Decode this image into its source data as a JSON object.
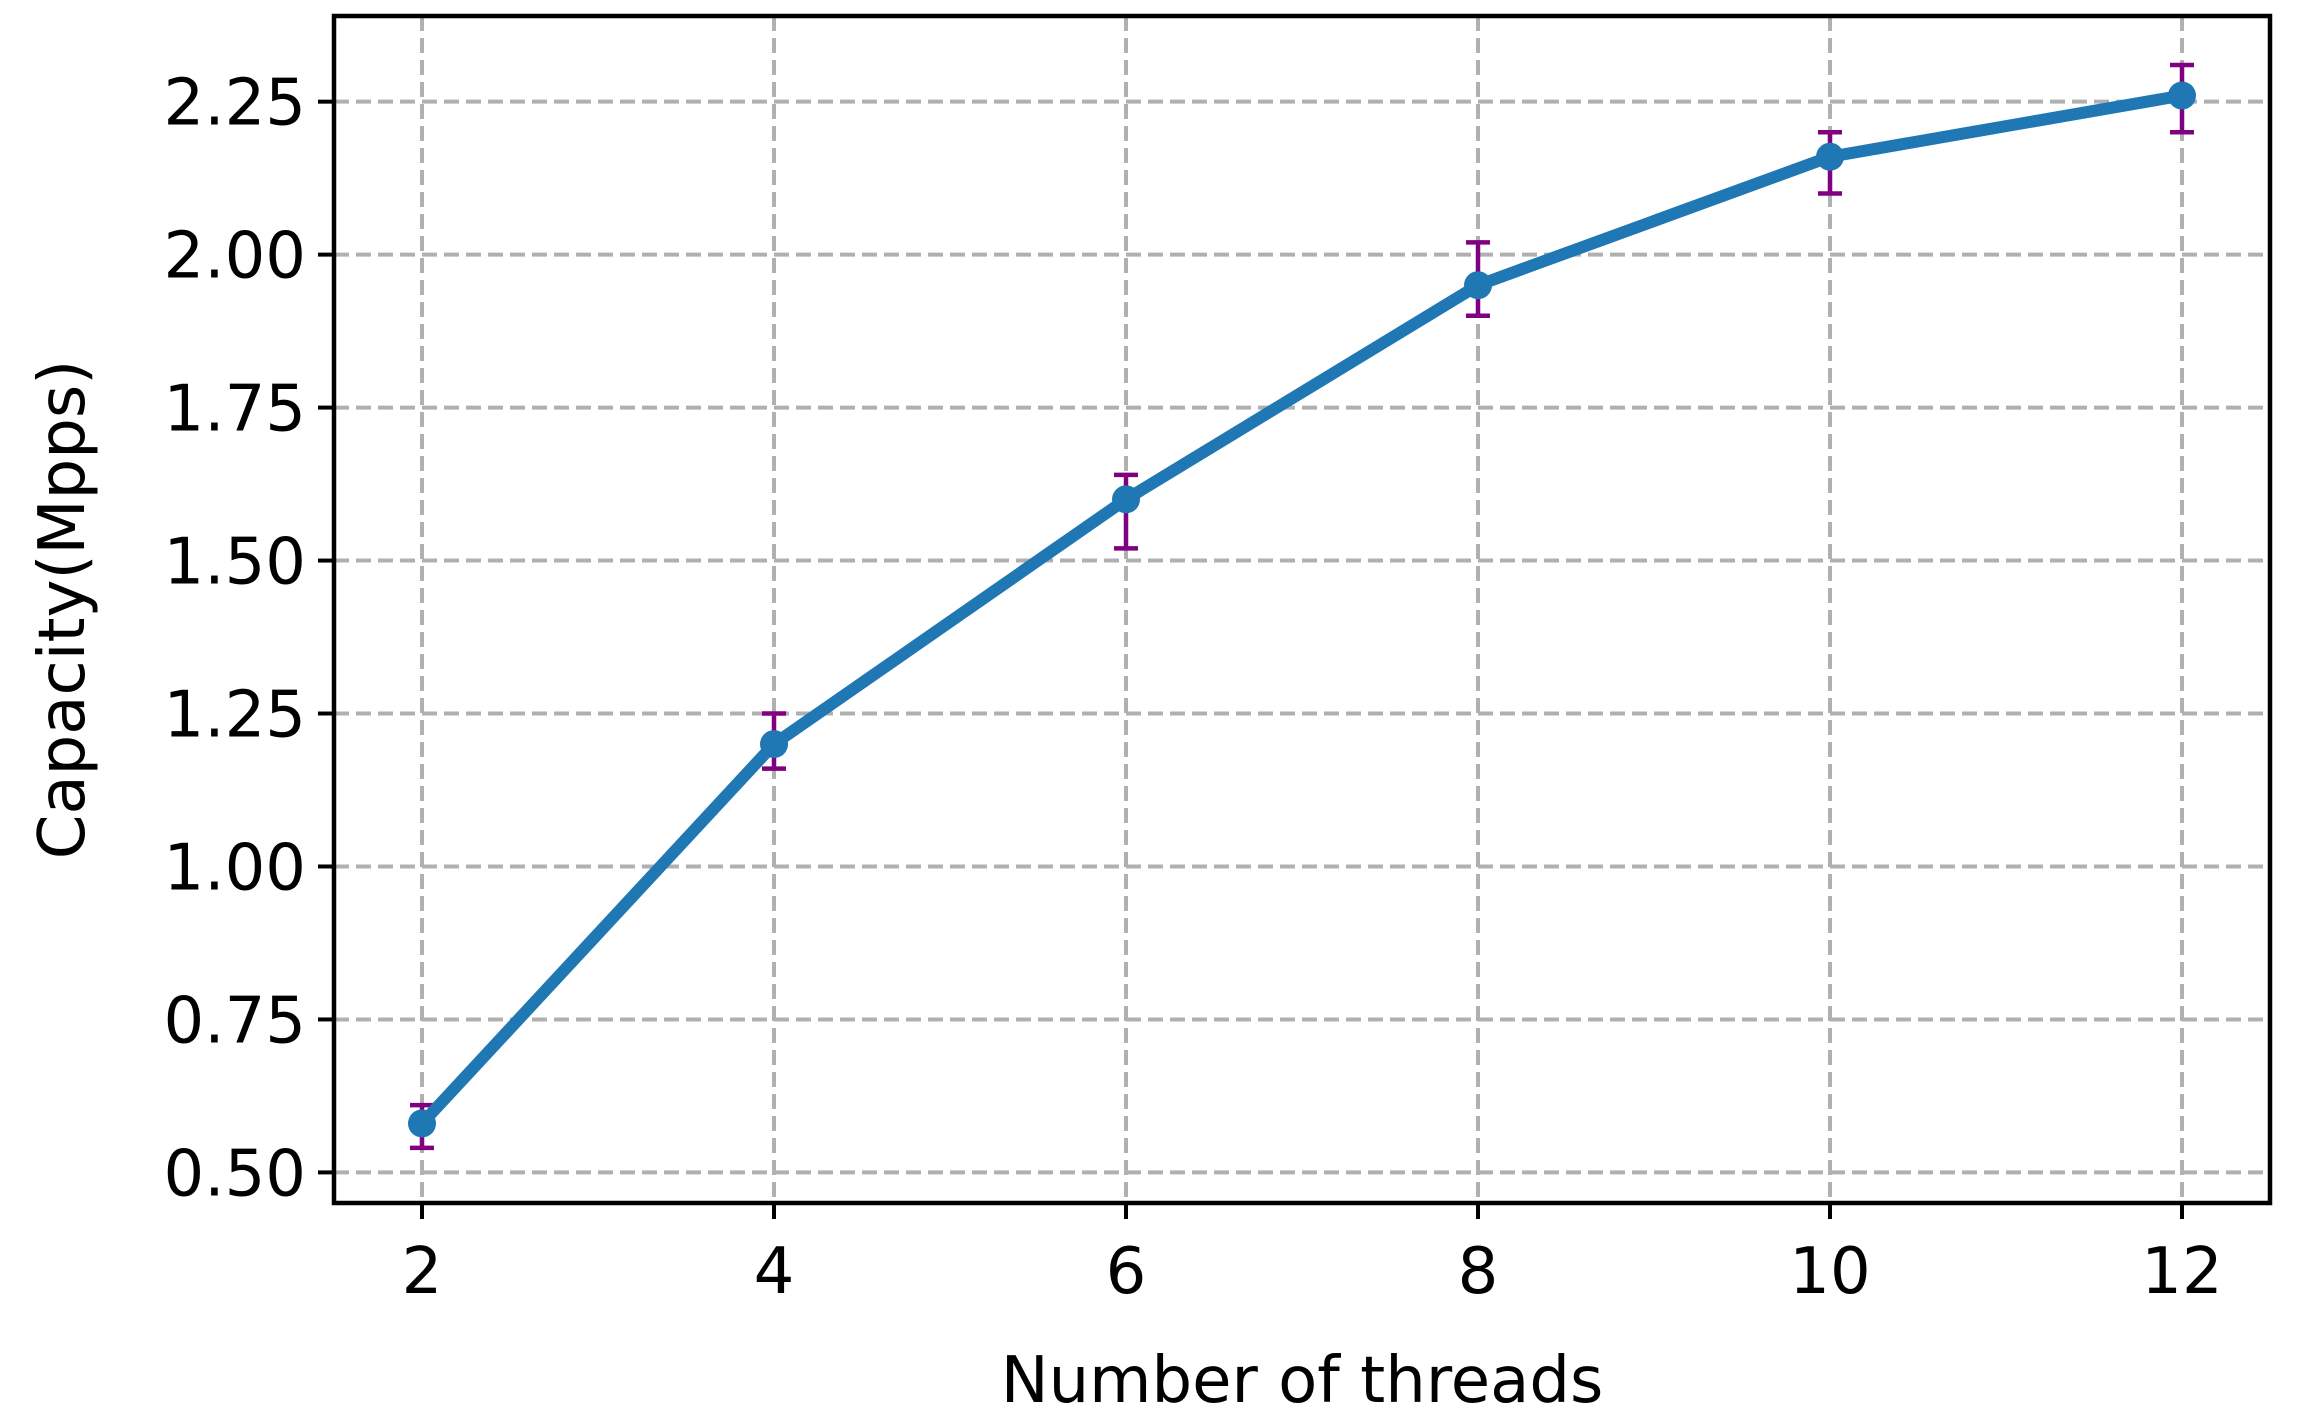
{
  "chart_data": {
    "type": "line",
    "title": "",
    "xlabel": "Number of threads",
    "ylabel": "Capacity(Mpps)",
    "x": [
      2,
      4,
      6,
      8,
      10,
      12
    ],
    "xlim": [
      1.5,
      12.5
    ],
    "ylim": [
      0.45,
      2.39
    ],
    "x_ticks": [
      2,
      4,
      6,
      8,
      10,
      12
    ],
    "x_tick_labels": [
      "2",
      "4",
      "6",
      "8",
      "10",
      "12"
    ],
    "y_ticks": [
      0.5,
      0.75,
      1.0,
      1.25,
      1.5,
      1.75,
      2.0,
      2.25
    ],
    "y_tick_labels": [
      "0.50",
      "0.75",
      "1.00",
      "1.25",
      "1.50",
      "1.75",
      "2.00",
      "2.25"
    ],
    "grid": true,
    "legend": "none",
    "series": [
      {
        "values": [
          0.58,
          1.2,
          1.6,
          1.95,
          2.16,
          2.26
        ],
        "error_low": [
          0.54,
          1.16,
          1.52,
          1.9,
          2.1,
          2.2
        ],
        "error_high": [
          0.61,
          1.25,
          1.64,
          2.02,
          2.2,
          2.31
        ],
        "color": "#1f77b4",
        "error_color": "#800080"
      }
    ]
  }
}
